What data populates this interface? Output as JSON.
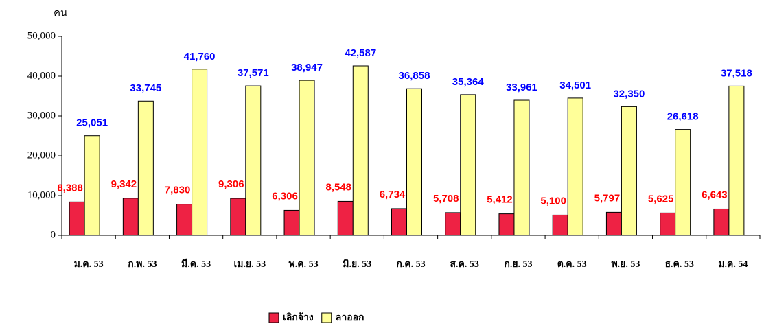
{
  "chart_data": {
    "type": "bar",
    "y_label": "คน",
    "categories": [
      "ม.ค. 53",
      "ก.พ. 53",
      "มี.ค. 53",
      "เม.ย. 53",
      "พ.ค. 53",
      "มิ.ย. 53",
      "ก.ค. 53",
      "ส.ค. 53",
      "ก.ย. 53",
      "ต.ค. 53",
      "พ.ย. 53",
      "ธ.ค. 53",
      "ม.ค. 54"
    ],
    "series": [
      {
        "name": "เลิกจ้าง",
        "color": "#ee2244",
        "label_color": "#ff0000",
        "values": [
          8388,
          9342,
          7830,
          9306,
          6306,
          8548,
          6734,
          5708,
          5412,
          5100,
          5797,
          5625,
          6643
        ],
        "value_labels": [
          "8,388",
          "9,342",
          "7,830",
          "9,306",
          "6,306",
          "8,548",
          "6,734",
          "5,708",
          "5,412",
          "5,100",
          "5,797",
          "5,625",
          "6,643"
        ]
      },
      {
        "name": "ลาออก",
        "color": "#ffff99",
        "label_color": "#0000ff",
        "values": [
          25051,
          33745,
          41760,
          37571,
          38947,
          42587,
          36858,
          35364,
          33961,
          34501,
          32350,
          26618,
          37518
        ],
        "value_labels": [
          "25,051",
          "33,745",
          "41,760",
          "37,571",
          "38,947",
          "42,587",
          "36,858",
          "35,364",
          "33,961",
          "34,501",
          "32,350",
          "26,618",
          "37,518"
        ]
      }
    ],
    "ylim": [
      0,
      50000
    ],
    "yticks": [
      0,
      {
        "value": 10000,
        "label": "10,000"
      },
      {
        "value": 20000,
        "label": "20,000"
      },
      {
        "value": 30000,
        "label": "30,000"
      },
      {
        "value": 40000,
        "label": "40,000"
      },
      {
        "value": 50000,
        "label": "50,000"
      }
    ],
    "legend": "bottom"
  }
}
